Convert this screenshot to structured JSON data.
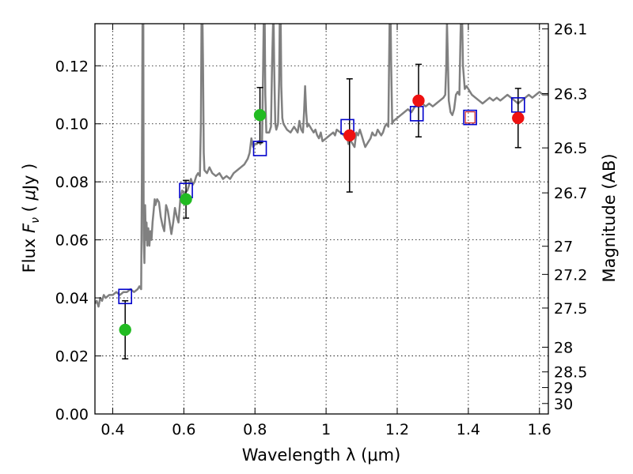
{
  "chart_data": {
    "type": "scatter",
    "xlabel": "Wavelength  λ (μm)",
    "ylabel_parts": [
      "Flux  ",
      "F",
      "ν",
      "  ( ",
      "μ",
      "Jy )"
    ],
    "right_ylabel": "Magnitude (AB)",
    "xlim": [
      0.35,
      1.625
    ],
    "ylim": [
      0.0,
      0.1345
    ],
    "grid": true,
    "x_ticks": [
      0.4,
      0.6,
      0.8,
      1.0,
      1.2,
      1.4,
      1.6
    ],
    "x_tick_labels": [
      "0.4",
      "0.6",
      "0.8",
      "1",
      "1.2",
      "1.4",
      "1.6"
    ],
    "y_ticks": [
      0.0,
      0.02,
      0.04,
      0.06,
      0.08,
      0.1,
      0.12
    ],
    "y_tick_labels": [
      "0.00",
      "0.02",
      "0.04",
      "0.06",
      "0.08",
      "0.10",
      "0.12"
    ],
    "right_ticks": [
      {
        "label": "26.1",
        "flux": 0.1327
      },
      {
        "label": "26.3",
        "flux": 0.1104
      },
      {
        "label": "26.5",
        "flux": 0.0917
      },
      {
        "label": "26.7",
        "flux": 0.0762
      },
      {
        "label": "27",
        "flux": 0.0578
      },
      {
        "label": "27.2",
        "flux": 0.0481
      },
      {
        "label": "27.5",
        "flux": 0.0365
      },
      {
        "label": "28",
        "flux": 0.023
      },
      {
        "label": "28.5",
        "flux": 0.0145
      },
      {
        "label": "29",
        "flux": 0.0091
      },
      {
        "label": "30",
        "flux": 0.0036
      }
    ],
    "model_spectrum": {
      "color": "#808080",
      "points": [
        [
          0.35,
          0.038
        ],
        [
          0.355,
          0.039
        ],
        [
          0.36,
          0.037
        ],
        [
          0.365,
          0.04
        ],
        [
          0.37,
          0.039
        ],
        [
          0.375,
          0.041
        ],
        [
          0.38,
          0.04
        ],
        [
          0.39,
          0.041
        ],
        [
          0.4,
          0.041
        ],
        [
          0.41,
          0.042
        ],
        [
          0.42,
          0.041
        ],
        [
          0.43,
          0.042
        ],
        [
          0.44,
          0.042
        ],
        [
          0.45,
          0.043
        ],
        [
          0.46,
          0.042
        ],
        [
          0.47,
          0.043
        ],
        [
          0.475,
          0.044
        ],
        [
          0.48,
          0.043
        ],
        [
          0.482,
          0.08
        ],
        [
          0.484,
          0.14
        ],
        [
          0.486,
          0.14
        ],
        [
          0.487,
          0.06
        ],
        [
          0.489,
          0.052
        ],
        [
          0.491,
          0.072
        ],
        [
          0.493,
          0.06
        ],
        [
          0.495,
          0.066
        ],
        [
          0.497,
          0.058
        ],
        [
          0.5,
          0.064
        ],
        [
          0.503,
          0.058
        ],
        [
          0.506,
          0.063
        ],
        [
          0.509,
          0.06
        ],
        [
          0.512,
          0.066
        ],
        [
          0.515,
          0.07
        ],
        [
          0.518,
          0.074
        ],
        [
          0.52,
          0.072
        ],
        [
          0.525,
          0.074
        ],
        [
          0.53,
          0.073
        ],
        [
          0.535,
          0.068
        ],
        [
          0.54,
          0.065
        ],
        [
          0.545,
          0.063
        ],
        [
          0.55,
          0.072
        ],
        [
          0.555,
          0.07
        ],
        [
          0.56,
          0.066
        ],
        [
          0.565,
          0.062
        ],
        [
          0.57,
          0.066
        ],
        [
          0.575,
          0.071
        ],
        [
          0.58,
          0.068
        ],
        [
          0.585,
          0.066
        ],
        [
          0.59,
          0.074
        ],
        [
          0.595,
          0.077
        ],
        [
          0.6,
          0.076
        ],
        [
          0.61,
          0.077
        ],
        [
          0.615,
          0.079
        ],
        [
          0.62,
          0.081
        ],
        [
          0.625,
          0.079
        ],
        [
          0.63,
          0.08
        ],
        [
          0.635,
          0.082
        ],
        [
          0.64,
          0.083
        ],
        [
          0.645,
          0.082
        ],
        [
          0.648,
          0.1
        ],
        [
          0.65,
          0.14
        ],
        [
          0.652,
          0.14
        ],
        [
          0.654,
          0.12
        ],
        [
          0.656,
          0.09
        ],
        [
          0.658,
          0.084
        ],
        [
          0.665,
          0.083
        ],
        [
          0.672,
          0.085
        ],
        [
          0.68,
          0.083
        ],
        [
          0.69,
          0.082
        ],
        [
          0.7,
          0.083
        ],
        [
          0.71,
          0.081
        ],
        [
          0.72,
          0.082
        ],
        [
          0.73,
          0.081
        ],
        [
          0.74,
          0.083
        ],
        [
          0.75,
          0.084
        ],
        [
          0.76,
          0.085
        ],
        [
          0.77,
          0.086
        ],
        [
          0.78,
          0.088
        ],
        [
          0.785,
          0.09
        ],
        [
          0.79,
          0.095
        ],
        [
          0.795,
          0.092
        ],
        [
          0.8,
          0.093
        ],
        [
          0.805,
          0.093
        ],
        [
          0.81,
          0.094
        ],
        [
          0.815,
          0.093
        ],
        [
          0.82,
          0.094
        ],
        [
          0.823,
          0.12
        ],
        [
          0.825,
          0.14
        ],
        [
          0.827,
          0.14
        ],
        [
          0.829,
          0.11
        ],
        [
          0.832,
          0.097
        ],
        [
          0.84,
          0.097
        ],
        [
          0.845,
          0.099
        ],
        [
          0.848,
          0.12
        ],
        [
          0.85,
          0.13
        ],
        [
          0.852,
          0.14
        ],
        [
          0.854,
          0.12
        ],
        [
          0.857,
          0.1
        ],
        [
          0.86,
          0.098
        ],
        [
          0.865,
          0.1
        ],
        [
          0.868,
          0.115
        ],
        [
          0.87,
          0.14
        ],
        [
          0.872,
          0.14
        ],
        [
          0.874,
          0.113
        ],
        [
          0.877,
          0.102
        ],
        [
          0.88,
          0.1
        ],
        [
          0.89,
          0.098
        ],
        [
          0.9,
          0.097
        ],
        [
          0.91,
          0.099
        ],
        [
          0.92,
          0.097
        ],
        [
          0.925,
          0.101
        ],
        [
          0.93,
          0.098
        ],
        [
          0.935,
          0.097
        ],
        [
          0.938,
          0.104
        ],
        [
          0.941,
          0.113
        ],
        [
          0.944,
          0.104
        ],
        [
          0.947,
          0.099
        ],
        [
          0.95,
          0.1
        ],
        [
          0.955,
          0.099
        ],
        [
          0.96,
          0.098
        ],
        [
          0.965,
          0.097
        ],
        [
          0.97,
          0.098
        ],
        [
          0.975,
          0.096
        ],
        [
          0.98,
          0.095
        ],
        [
          0.985,
          0.097
        ],
        [
          0.99,
          0.094
        ],
        [
          1.0,
          0.095
        ],
        [
          1.01,
          0.096
        ],
        [
          1.02,
          0.097
        ],
        [
          1.025,
          0.096
        ],
        [
          1.03,
          0.098
        ],
        [
          1.04,
          0.097
        ],
        [
          1.05,
          0.096
        ],
        [
          1.06,
          0.095
        ],
        [
          1.063,
          0.093
        ],
        [
          1.065,
          0.095
        ],
        [
          1.07,
          0.094
        ],
        [
          1.075,
          0.093
        ],
        [
          1.08,
          0.092
        ],
        [
          1.085,
          0.097
        ],
        [
          1.09,
          0.096
        ],
        [
          1.095,
          0.098
        ],
        [
          1.1,
          0.096
        ],
        [
          1.105,
          0.094
        ],
        [
          1.11,
          0.092
        ],
        [
          1.115,
          0.093
        ],
        [
          1.12,
          0.094
        ],
        [
          1.125,
          0.095
        ],
        [
          1.13,
          0.097
        ],
        [
          1.135,
          0.096
        ],
        [
          1.14,
          0.096
        ],
        [
          1.145,
          0.098
        ],
        [
          1.15,
          0.097
        ],
        [
          1.155,
          0.096
        ],
        [
          1.16,
          0.097
        ],
        [
          1.165,
          0.099
        ],
        [
          1.17,
          0.1
        ],
        [
          1.175,
          0.099
        ],
        [
          1.177,
          0.12
        ],
        [
          1.179,
          0.14
        ],
        [
          1.181,
          0.14
        ],
        [
          1.183,
          0.12
        ],
        [
          1.186,
          0.1
        ],
        [
          1.19,
          0.101
        ],
        [
          1.2,
          0.102
        ],
        [
          1.21,
          0.103
        ],
        [
          1.22,
          0.104
        ],
        [
          1.23,
          0.105
        ],
        [
          1.24,
          0.104
        ],
        [
          1.25,
          0.106
        ],
        [
          1.26,
          0.108
        ],
        [
          1.27,
          0.107
        ],
        [
          1.28,
          0.106
        ],
        [
          1.29,
          0.107
        ],
        [
          1.3,
          0.106
        ],
        [
          1.31,
          0.107
        ],
        [
          1.32,
          0.108
        ],
        [
          1.33,
          0.109
        ],
        [
          1.335,
          0.11
        ],
        [
          1.338,
          0.12
        ],
        [
          1.34,
          0.135
        ],
        [
          1.342,
          0.125
        ],
        [
          1.345,
          0.108
        ],
        [
          1.35,
          0.104
        ],
        [
          1.355,
          0.103
        ],
        [
          1.36,
          0.105
        ],
        [
          1.365,
          0.11
        ],
        [
          1.37,
          0.111
        ],
        [
          1.375,
          0.11
        ],
        [
          1.378,
          0.13
        ],
        [
          1.38,
          0.14
        ],
        [
          1.382,
          0.14
        ],
        [
          1.385,
          0.12
        ],
        [
          1.39,
          0.112
        ],
        [
          1.395,
          0.113
        ],
        [
          1.4,
          0.112
        ],
        [
          1.405,
          0.111
        ],
        [
          1.41,
          0.11
        ],
        [
          1.42,
          0.109
        ],
        [
          1.43,
          0.108
        ],
        [
          1.44,
          0.107
        ],
        [
          1.45,
          0.108
        ],
        [
          1.46,
          0.109
        ],
        [
          1.47,
          0.108
        ],
        [
          1.48,
          0.109
        ],
        [
          1.49,
          0.108
        ],
        [
          1.5,
          0.109
        ],
        [
          1.51,
          0.11
        ],
        [
          1.52,
          0.109
        ],
        [
          1.53,
          0.108
        ],
        [
          1.54,
          0.107
        ],
        [
          1.55,
          0.108
        ],
        [
          1.56,
          0.109
        ],
        [
          1.57,
          0.11
        ],
        [
          1.58,
          0.109
        ],
        [
          1.59,
          0.11
        ],
        [
          1.6,
          0.111
        ],
        [
          1.61,
          0.11
        ],
        [
          1.625,
          0.11
        ]
      ]
    },
    "model_bandpass": {
      "marker": "open-square",
      "color": "#0000cc",
      "inner_color": "#cc0000",
      "points": [
        {
          "x": 0.435,
          "y": 0.0405
        },
        {
          "x": 0.606,
          "y": 0.077
        },
        {
          "x": 0.814,
          "y": 0.0915
        },
        {
          "x": 1.06,
          "y": 0.099
        },
        {
          "x": 1.255,
          "y": 0.1035
        },
        {
          "x": 1.405,
          "y": 0.1022
        },
        {
          "x": 1.54,
          "y": 0.1065
        }
      ]
    },
    "observed_green": {
      "marker": "filled-circle",
      "color": "#22bb22",
      "points": [
        {
          "x": 0.435,
          "y": 0.029,
          "err": 0.01
        },
        {
          "x": 0.606,
          "y": 0.074,
          "err": 0.0065
        },
        {
          "x": 0.814,
          "y": 0.103,
          "err": 0.0095
        }
      ]
    },
    "observed_red": {
      "marker": "filled-circle",
      "color": "#ee1111",
      "points": [
        {
          "x": 1.066,
          "y": 0.096,
          "err": 0.0195
        },
        {
          "x": 1.26,
          "y": 0.108,
          "err": 0.0125
        },
        {
          "x": 1.54,
          "y": 0.102,
          "err": 0.0102
        }
      ]
    }
  }
}
